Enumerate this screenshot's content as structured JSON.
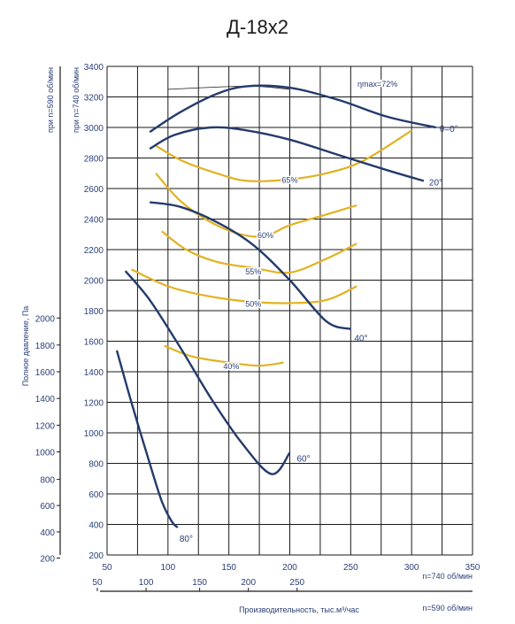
{
  "chart_data": {
    "type": "line",
    "title": "Д-18х2",
    "xlabel": "Производительность, тыс.м³/час",
    "ylabel": "Полное давление,  Па",
    "y_main_header": "при n=740 об/мин",
    "y_second_header": "при n=590 об/мин",
    "x_main_note": "n=740 об/мин",
    "x_second_note": "n=590 об/мин",
    "xlim": [
      50,
      350
    ],
    "ylim": [
      200,
      3400
    ],
    "x_ticks": [
      50,
      100,
      150,
      200,
      250,
      300,
      350
    ],
    "y_ticks": [
      200,
      400,
      600,
      800,
      1000,
      1200,
      1400,
      1600,
      1800,
      2000,
      2200,
      2400,
      2600,
      2800,
      3000,
      3200,
      3400
    ],
    "x2_ticks": [
      50,
      100,
      150,
      200,
      250
    ],
    "x2_positions": [
      42,
      82,
      126,
      166,
      206
    ],
    "y2_ticks": [
      200,
      400,
      600,
      800,
      1000,
      1200,
      1400,
      1600,
      1800,
      2000
    ],
    "y2_positions": [
      180,
      351,
      524,
      695,
      875,
      1050,
      1225,
      1400,
      1575,
      1752
    ],
    "colors": {
      "pressure": "#243b6b",
      "efficiency": "#e2b222",
      "text_blue": "#2a3f78",
      "grid": "#1a1a1a"
    },
    "grid": true,
    "pressure_curves": [
      {
        "label": "θ=0°",
        "points": [
          [
            85,
            2970
          ],
          [
            110,
            3100
          ],
          [
            140,
            3220
          ],
          [
            165,
            3270
          ],
          [
            200,
            3260
          ],
          [
            240,
            3180
          ],
          [
            280,
            3070
          ],
          [
            320,
            3000
          ]
        ]
      },
      {
        "label": "20°",
        "points": [
          [
            85,
            2860
          ],
          [
            105,
            2950
          ],
          [
            135,
            3000
          ],
          [
            165,
            2980
          ],
          [
            200,
            2920
          ],
          [
            240,
            2820
          ],
          [
            280,
            2720
          ],
          [
            310,
            2650
          ]
        ]
      },
      {
        "label": "40°",
        "points": [
          [
            85,
            2510
          ],
          [
            110,
            2480
          ],
          [
            140,
            2380
          ],
          [
            170,
            2230
          ],
          [
            200,
            2000
          ],
          [
            230,
            1730
          ],
          [
            250,
            1680
          ]
        ]
      },
      {
        "label": "60°",
        "points": [
          [
            65,
            2060
          ],
          [
            85,
            1870
          ],
          [
            110,
            1560
          ],
          [
            135,
            1230
          ],
          [
            160,
            940
          ],
          [
            185,
            730
          ],
          [
            200,
            870
          ]
        ]
      },
      {
        "label": "80°",
        "points": [
          [
            58,
            1540
          ],
          [
            70,
            1200
          ],
          [
            85,
            800
          ],
          [
            95,
            550
          ],
          [
            103,
            420
          ],
          [
            108,
            380
          ]
        ]
      }
    ],
    "efficiency_curves": [
      {
        "label": "ηmax=72%",
        "points": [
          [
            100,
            3250
          ],
          [
            165,
            3270
          ],
          [
            200,
            3250
          ]
        ]
      },
      {
        "label": "65%",
        "points": [
          [
            90,
            2880
          ],
          [
            112,
            2780
          ],
          [
            140,
            2700
          ],
          [
            165,
            2650
          ],
          [
            200,
            2660
          ],
          [
            230,
            2700
          ],
          [
            260,
            2780
          ],
          [
            300,
            2980
          ]
        ]
      },
      {
        "label": "60%",
        "points": [
          [
            90,
            2700
          ],
          [
            110,
            2520
          ],
          [
            135,
            2380
          ],
          [
            160,
            2300
          ],
          [
            180,
            2290
          ],
          [
            200,
            2360
          ],
          [
            230,
            2430
          ],
          [
            255,
            2490
          ]
        ]
      },
      {
        "label": "55%",
        "points": [
          [
            95,
            2320
          ],
          [
            115,
            2200
          ],
          [
            140,
            2120
          ],
          [
            170,
            2080
          ],
          [
            200,
            2050
          ],
          [
            230,
            2140
          ],
          [
            255,
            2240
          ]
        ]
      },
      {
        "label": "50%",
        "points": [
          [
            70,
            2070
          ],
          [
            100,
            1960
          ],
          [
            130,
            1900
          ],
          [
            165,
            1860
          ],
          [
            200,
            1850
          ],
          [
            230,
            1870
          ],
          [
            255,
            1960
          ]
        ]
      },
      {
        "label": "40%",
        "points": [
          [
            97,
            1570
          ],
          [
            120,
            1500
          ],
          [
            150,
            1460
          ],
          [
            175,
            1440
          ],
          [
            195,
            1460
          ]
        ]
      }
    ]
  }
}
